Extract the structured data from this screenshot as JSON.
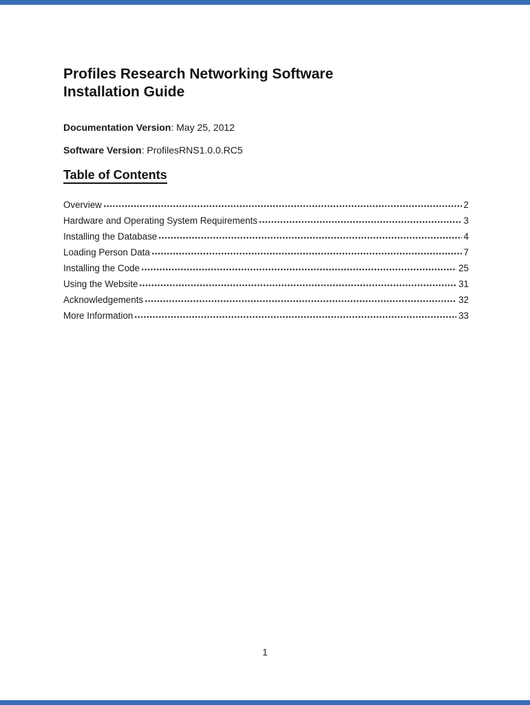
{
  "doc": {
    "title_lines": {
      "line1": "Profiles Research Networking Software",
      "line2": "Installation Guide"
    },
    "meta": {
      "documentation": {
        "label": "Documentation Version",
        "value": ": May 25, 2012"
      },
      "software": {
        "label": "Software Version",
        "value": ": ProfilesRNS1.0.0.RC5"
      }
    },
    "toc": {
      "heading": "Table of Contents",
      "entries": [
        {
          "label": "Overview",
          "page": "2"
        },
        {
          "label": "Hardware and Operating System Requirements",
          "page": "3"
        },
        {
          "label": "Installing the Database",
          "page": "4"
        },
        {
          "label": "Loading Person Data",
          "page": "7"
        },
        {
          "label": "Installing the Code",
          "page": "25"
        },
        {
          "label": "Using the Website",
          "page": "31"
        },
        {
          "label": "Acknowledgements",
          "page": "32"
        },
        {
          "label": "More Information",
          "page": "33"
        }
      ]
    },
    "footer": {
      "page_number": "1"
    }
  },
  "colors": {
    "page_background": "#ffffff",
    "text": "#161616",
    "edge_bar": "#3a6db8"
  }
}
